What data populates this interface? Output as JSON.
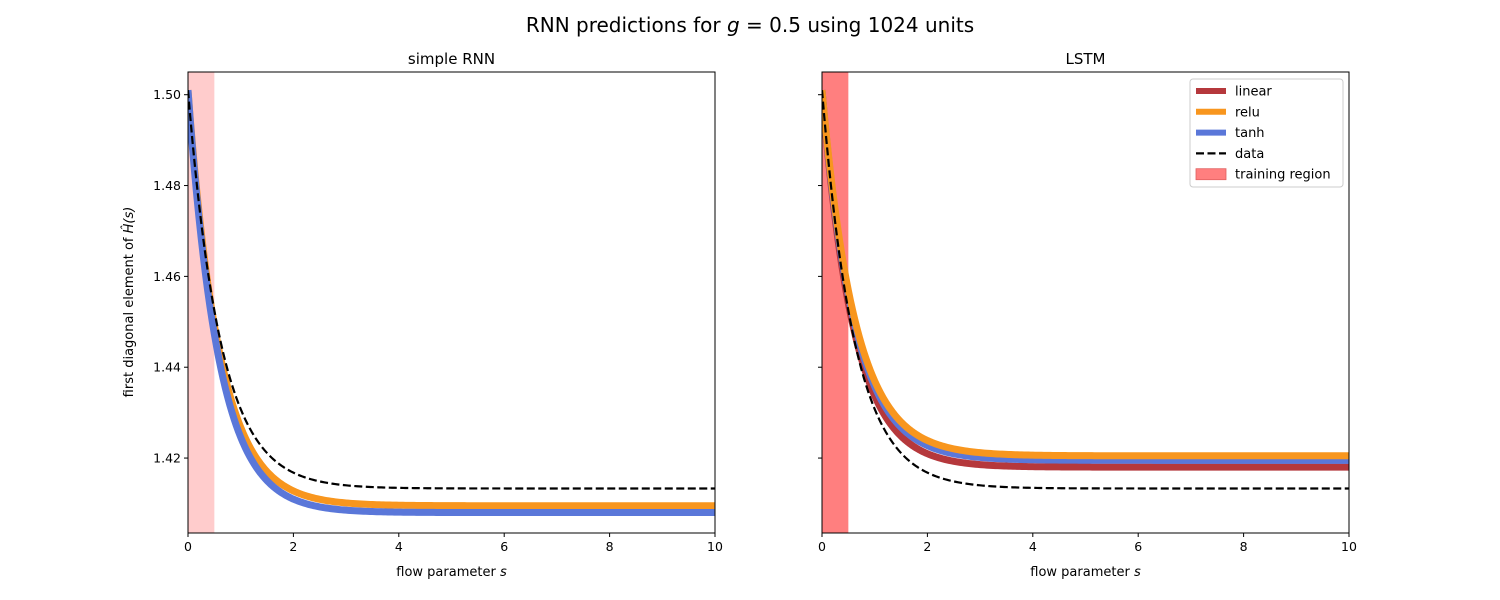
{
  "figure": {
    "title": {
      "prefix": "RNN predictions for ",
      "var": "g",
      "suffix": " = 0.5 using 1024 units"
    }
  },
  "colors": {
    "linear": "#b5383c",
    "relu": "#f8961e",
    "tanh": "#5a77d9",
    "data": "#000000",
    "training_region_left": "#ffcccc",
    "training_region_right": "#ff7f7f"
  },
  "chart_data": [
    {
      "type": "line",
      "title": "simple RNN",
      "xlabel": {
        "prefix": "flow parameter ",
        "var": "s"
      },
      "ylabel": {
        "prefix": "first diagonal element of ",
        "var": "Ĥ(s)"
      },
      "xlim": [
        0,
        10
      ],
      "ylim": [
        1.4035,
        1.505
      ],
      "xticks": [
        0,
        2,
        4,
        6,
        8,
        10
      ],
      "yticks": [
        1.42,
        1.44,
        1.46,
        1.48,
        1.5
      ],
      "ytick_labels": [
        "1.42",
        "1.44",
        "1.46",
        "1.48",
        "1.50"
      ],
      "show_ytick_labels": true,
      "grid": false,
      "shaded_region": {
        "name": "training region",
        "x": [
          0,
          0.5
        ]
      },
      "series": [
        {
          "name": "relu",
          "style": "solid",
          "start": 1.501,
          "end": 1.4095,
          "tau": 0.6
        },
        {
          "name": "tanh",
          "style": "solid",
          "start": 1.501,
          "end": 1.408,
          "tau": 0.58
        },
        {
          "name": "data",
          "style": "dashed",
          "start": 1.501,
          "end": 1.4133,
          "tau": 0.62
        }
      ]
    },
    {
      "type": "line",
      "title": "LSTM",
      "xlabel": {
        "prefix": "flow parameter ",
        "var": "s"
      },
      "xlim": [
        0,
        10
      ],
      "ylim": [
        1.4035,
        1.505
      ],
      "xticks": [
        0,
        2,
        4,
        6,
        8,
        10
      ],
      "yticks": [
        1.42,
        1.44,
        1.46,
        1.48,
        1.5
      ],
      "show_ytick_labels": false,
      "grid": false,
      "shaded_region": {
        "name": "training region",
        "x": [
          0,
          0.5
        ]
      },
      "legend": {
        "placement": "upper-right",
        "entries": [
          {
            "label": "linear",
            "kind": "line"
          },
          {
            "label": "relu",
            "kind": "line"
          },
          {
            "label": "tanh",
            "kind": "line"
          },
          {
            "label": "data",
            "kind": "dashed"
          },
          {
            "label": "training region",
            "kind": "patch"
          }
        ]
      },
      "series": [
        {
          "name": "linear",
          "style": "solid",
          "start": 1.501,
          "end": 1.418,
          "tau": 0.6
        },
        {
          "name": "tanh",
          "style": "solid",
          "start": 1.501,
          "end": 1.4195,
          "tau": 0.62
        },
        {
          "name": "relu",
          "style": "solid",
          "start": 1.501,
          "end": 1.4205,
          "tau": 0.63
        },
        {
          "name": "data",
          "style": "dashed",
          "start": 1.501,
          "end": 1.4133,
          "tau": 0.62
        }
      ]
    }
  ]
}
